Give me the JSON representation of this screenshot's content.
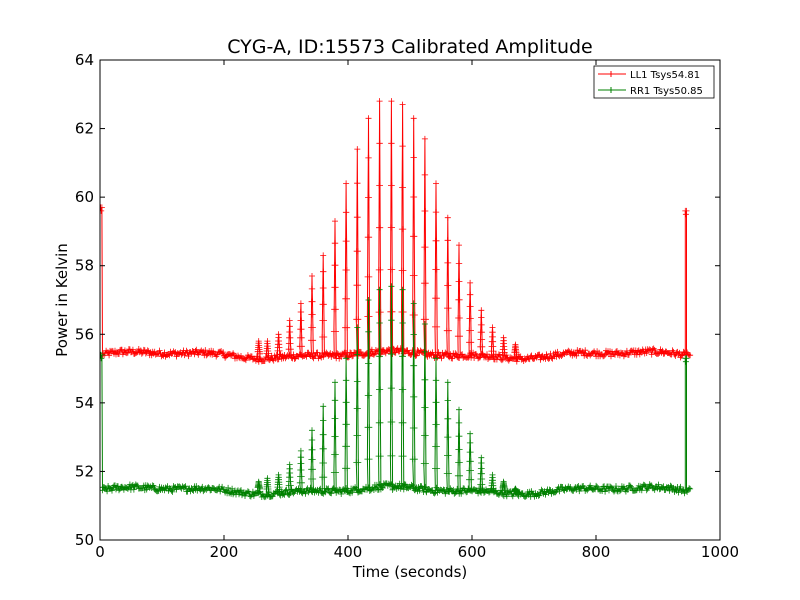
{
  "chart_data": {
    "type": "line",
    "title": "CYG-A, ID:15573 Calibrated Amplitude",
    "xlabel": "Time (seconds)",
    "ylabel": "Power in Kelvin",
    "xlim": [
      0,
      1000
    ],
    "ylim": [
      50,
      64
    ],
    "xticks": [
      0,
      200,
      400,
      600,
      800,
      1000
    ],
    "yticks": [
      50,
      52,
      54,
      56,
      58,
      60,
      62,
      64
    ],
    "grid": false,
    "legend_position": "top-right",
    "series": [
      {
        "name": "LL1 Tsys54.81",
        "color": "#ff0000",
        "baseline": 55.4,
        "edge_spikes": [
          [
            3,
            59.7
          ],
          [
            944,
            59.6
          ]
        ],
        "peaks": [
          [
            256,
            55.8
          ],
          [
            270,
            55.8
          ],
          [
            288,
            56.0
          ],
          [
            306,
            56.4
          ],
          [
            324,
            56.9
          ],
          [
            342,
            57.7
          ],
          [
            360,
            58.3
          ],
          [
            379,
            59.3
          ],
          [
            397,
            60.4
          ],
          [
            415,
            61.4
          ],
          [
            433,
            62.3
          ],
          [
            451,
            62.8
          ],
          [
            470,
            62.8
          ],
          [
            488,
            62.7
          ],
          [
            506,
            62.3
          ],
          [
            524,
            61.7
          ],
          [
            542,
            60.4
          ],
          [
            561,
            59.4
          ],
          [
            579,
            58.6
          ],
          [
            597,
            57.5
          ],
          [
            615,
            56.7
          ],
          [
            633,
            56.2
          ],
          [
            651,
            55.9
          ],
          [
            670,
            55.7
          ]
        ]
      },
      {
        "name": "RR1 Tsys50.85",
        "color": "#008000",
        "baseline": 51.45,
        "edge_spikes": [
          [
            3,
            55.4
          ],
          [
            944,
            55.3
          ]
        ],
        "peaks": [
          [
            256,
            51.7
          ],
          [
            270,
            51.8
          ],
          [
            288,
            51.9
          ],
          [
            306,
            52.2
          ],
          [
            324,
            52.6
          ],
          [
            342,
            53.2
          ],
          [
            360,
            53.9
          ],
          [
            379,
            54.6
          ],
          [
            397,
            55.3
          ],
          [
            415,
            56.2
          ],
          [
            433,
            57.0
          ],
          [
            451,
            57.3
          ],
          [
            470,
            57.4
          ],
          [
            488,
            57.3
          ],
          [
            506,
            56.9
          ],
          [
            524,
            56.3
          ],
          [
            542,
            55.3
          ],
          [
            561,
            54.6
          ],
          [
            579,
            53.8
          ],
          [
            597,
            53.1
          ],
          [
            615,
            52.4
          ],
          [
            633,
            51.9
          ],
          [
            651,
            51.7
          ],
          [
            670,
            51.5
          ]
        ]
      }
    ]
  }
}
